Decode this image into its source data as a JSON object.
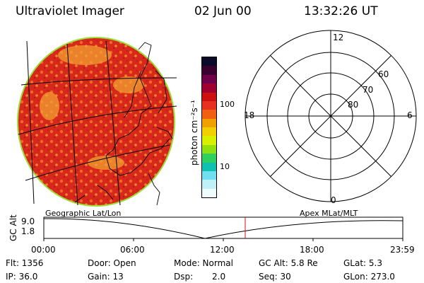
{
  "header": {
    "title": "Ultraviolet Imager",
    "date": "02 Jun 00",
    "time": "13:32:26 UT"
  },
  "colorbar": {
    "unit_label": "photon cm⁻²s⁻¹",
    "ticks": [
      "100",
      "10"
    ],
    "colors": [
      "#0a0a2a",
      "#3a0030",
      "#70004a",
      "#a00030",
      "#cc1010",
      "#e83020",
      "#f06010",
      "#f0a000",
      "#f0d000",
      "#d8f000",
      "#90e010",
      "#30d060",
      "#10c0b0",
      "#70e0f0",
      "#c0f0f8",
      "#eefcfd"
    ]
  },
  "polar_plot": {
    "clock_labels": [
      "12",
      "6",
      "18",
      "0"
    ],
    "lat_labels": [
      "60",
      "70",
      "80"
    ]
  },
  "alt_timeline": {
    "ylabel": "GC Alt",
    "y_ticks": [
      "9.0",
      "1.8"
    ],
    "left_label": "Geographic Lat/Lon",
    "right_label": "Apex MLat/MLT",
    "x_ticks": [
      "00:00",
      "06:00",
      "12:00",
      "18:00",
      "23:59"
    ],
    "current_marker_time": "13:32:26"
  },
  "status": {
    "flt": "Flt: 1356",
    "ip": "IP: 36.0",
    "door": "Door: Open",
    "gain": "Gain: 13",
    "mode": "Mode: Normal",
    "dsp_label": "Dsp:",
    "dsp_value": "2.0",
    "gc_alt": "GC Alt: 5.8 Re",
    "seq": "Seq: 30",
    "glat": "GLat:  5.3",
    "glon": "GLon: 273.0"
  }
}
